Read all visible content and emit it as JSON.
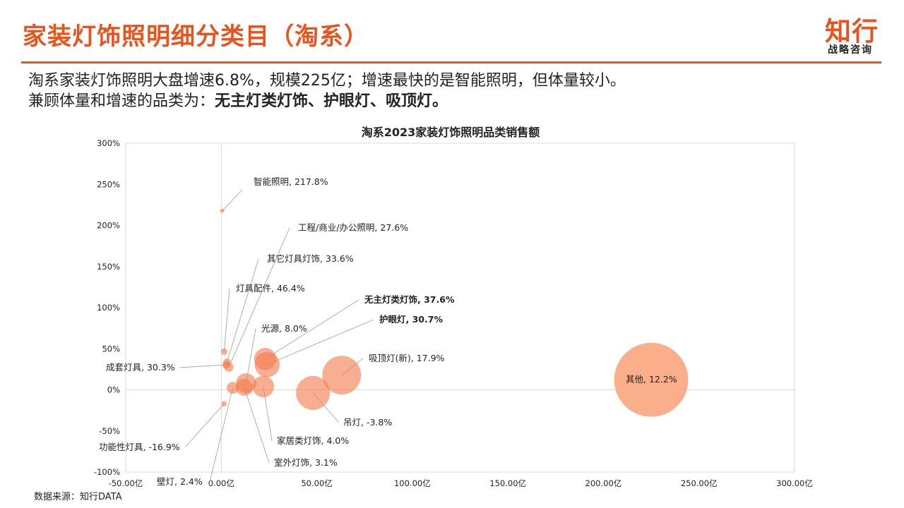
{
  "header": {
    "title": "家装灯饰照明细分类目（淘系）",
    "logo_main": "知行",
    "logo_sub": "战略咨询"
  },
  "summary": {
    "line1": "淘系家装灯饰照明大盘增速6.8%，规模225亿；增速最快的是智能照明，但体量较小。",
    "line2_prefix": "兼顾体量和增速的品类为：",
    "line2_bold": "无主灯类灯饰、护眼灯、吸顶灯。"
  },
  "source": "数据来源：知行DATA",
  "colors": {
    "accent": "#e8541d",
    "bubble": "#f47c4e",
    "bubble_large": "#f9a177"
  },
  "chart_data": {
    "type": "scatter",
    "title": "淘系2023家装灯饰照明品类销售额",
    "xlim": [
      -50,
      300
    ],
    "ylim": [
      -100,
      300
    ],
    "x_ticks": [
      -50,
      0,
      50,
      100,
      150,
      200,
      250,
      300
    ],
    "y_ticks": [
      -100,
      -50,
      0,
      50,
      100,
      150,
      200,
      250,
      300
    ],
    "x_tick_labels": [
      "-50.00亿",
      "0.00亿",
      "50.00亿",
      "100.00亿",
      "150.00亿",
      "200.00亿",
      "250.00亿",
      "300.00亿"
    ],
    "y_tick_labels": [
      "-100%",
      "-50%",
      "0%",
      "50%",
      "100%",
      "150%",
      "200%",
      "250%",
      "300%"
    ],
    "points": [
      {
        "name": "智能照明",
        "label": "智能照明, 217.8%",
        "x": 0.5,
        "y": 217.8,
        "size": 0.4,
        "bold": false
      },
      {
        "name": "工程/商业/办公照明",
        "label": "工程/商业/办公照明, 27.6%",
        "x": 4,
        "y": 27.6,
        "size": 3,
        "bold": false
      },
      {
        "name": "其它灯具灯饰",
        "label": "其它灯具灯饰, 33.6%",
        "x": 3,
        "y": 33.6,
        "size": 2,
        "bold": false
      },
      {
        "name": "灯具配件",
        "label": "灯具配件, 46.4%",
        "x": 1.5,
        "y": 46.4,
        "size": 1.5,
        "bold": false
      },
      {
        "name": "无主灯类灯饰",
        "label": "无主灯类灯饰, 37.6%",
        "x": 23,
        "y": 37.6,
        "size": 17,
        "bold": true
      },
      {
        "name": "护眼灯",
        "label": "护眼灯, 30.7%",
        "x": 24,
        "y": 30.7,
        "size": 22,
        "bold": true
      },
      {
        "name": "光源",
        "label": "光源, 8.0%",
        "x": 13,
        "y": 8.0,
        "size": 14,
        "bold": false
      },
      {
        "name": "吸顶灯(新)",
        "label": "吸顶灯(新), 17.9%",
        "x": 63,
        "y": 17.9,
        "size": 52,
        "bold": false
      },
      {
        "name": "成套灯具",
        "label": "成套灯具, 30.3%",
        "x": 2.5,
        "y": 30.3,
        "size": 2,
        "bold": false
      },
      {
        "name": "其他",
        "label": "其他, 12.2%",
        "x": 225,
        "y": 12.2,
        "size": 190,
        "bold": false
      },
      {
        "name": "功能性灯具",
        "label": "功能性灯具, -16.9%",
        "x": 1.5,
        "y": -16.9,
        "size": 1,
        "bold": false
      },
      {
        "name": "吊灯",
        "label": "吊灯, -3.8%",
        "x": 48,
        "y": -3.8,
        "size": 40,
        "bold": false
      },
      {
        "name": "家居类灯饰",
        "label": "家居类灯饰, 4.0%",
        "x": 22,
        "y": 4.0,
        "size": 16,
        "bold": false
      },
      {
        "name": "室外灯饰",
        "label": "室外灯饰, 3.1%",
        "x": 12,
        "y": 3.1,
        "size": 10,
        "bold": false
      },
      {
        "name": "壁灯",
        "label": "壁灯, 2.4%",
        "x": 6,
        "y": 2.4,
        "size": 5,
        "bold": false
      }
    ]
  }
}
